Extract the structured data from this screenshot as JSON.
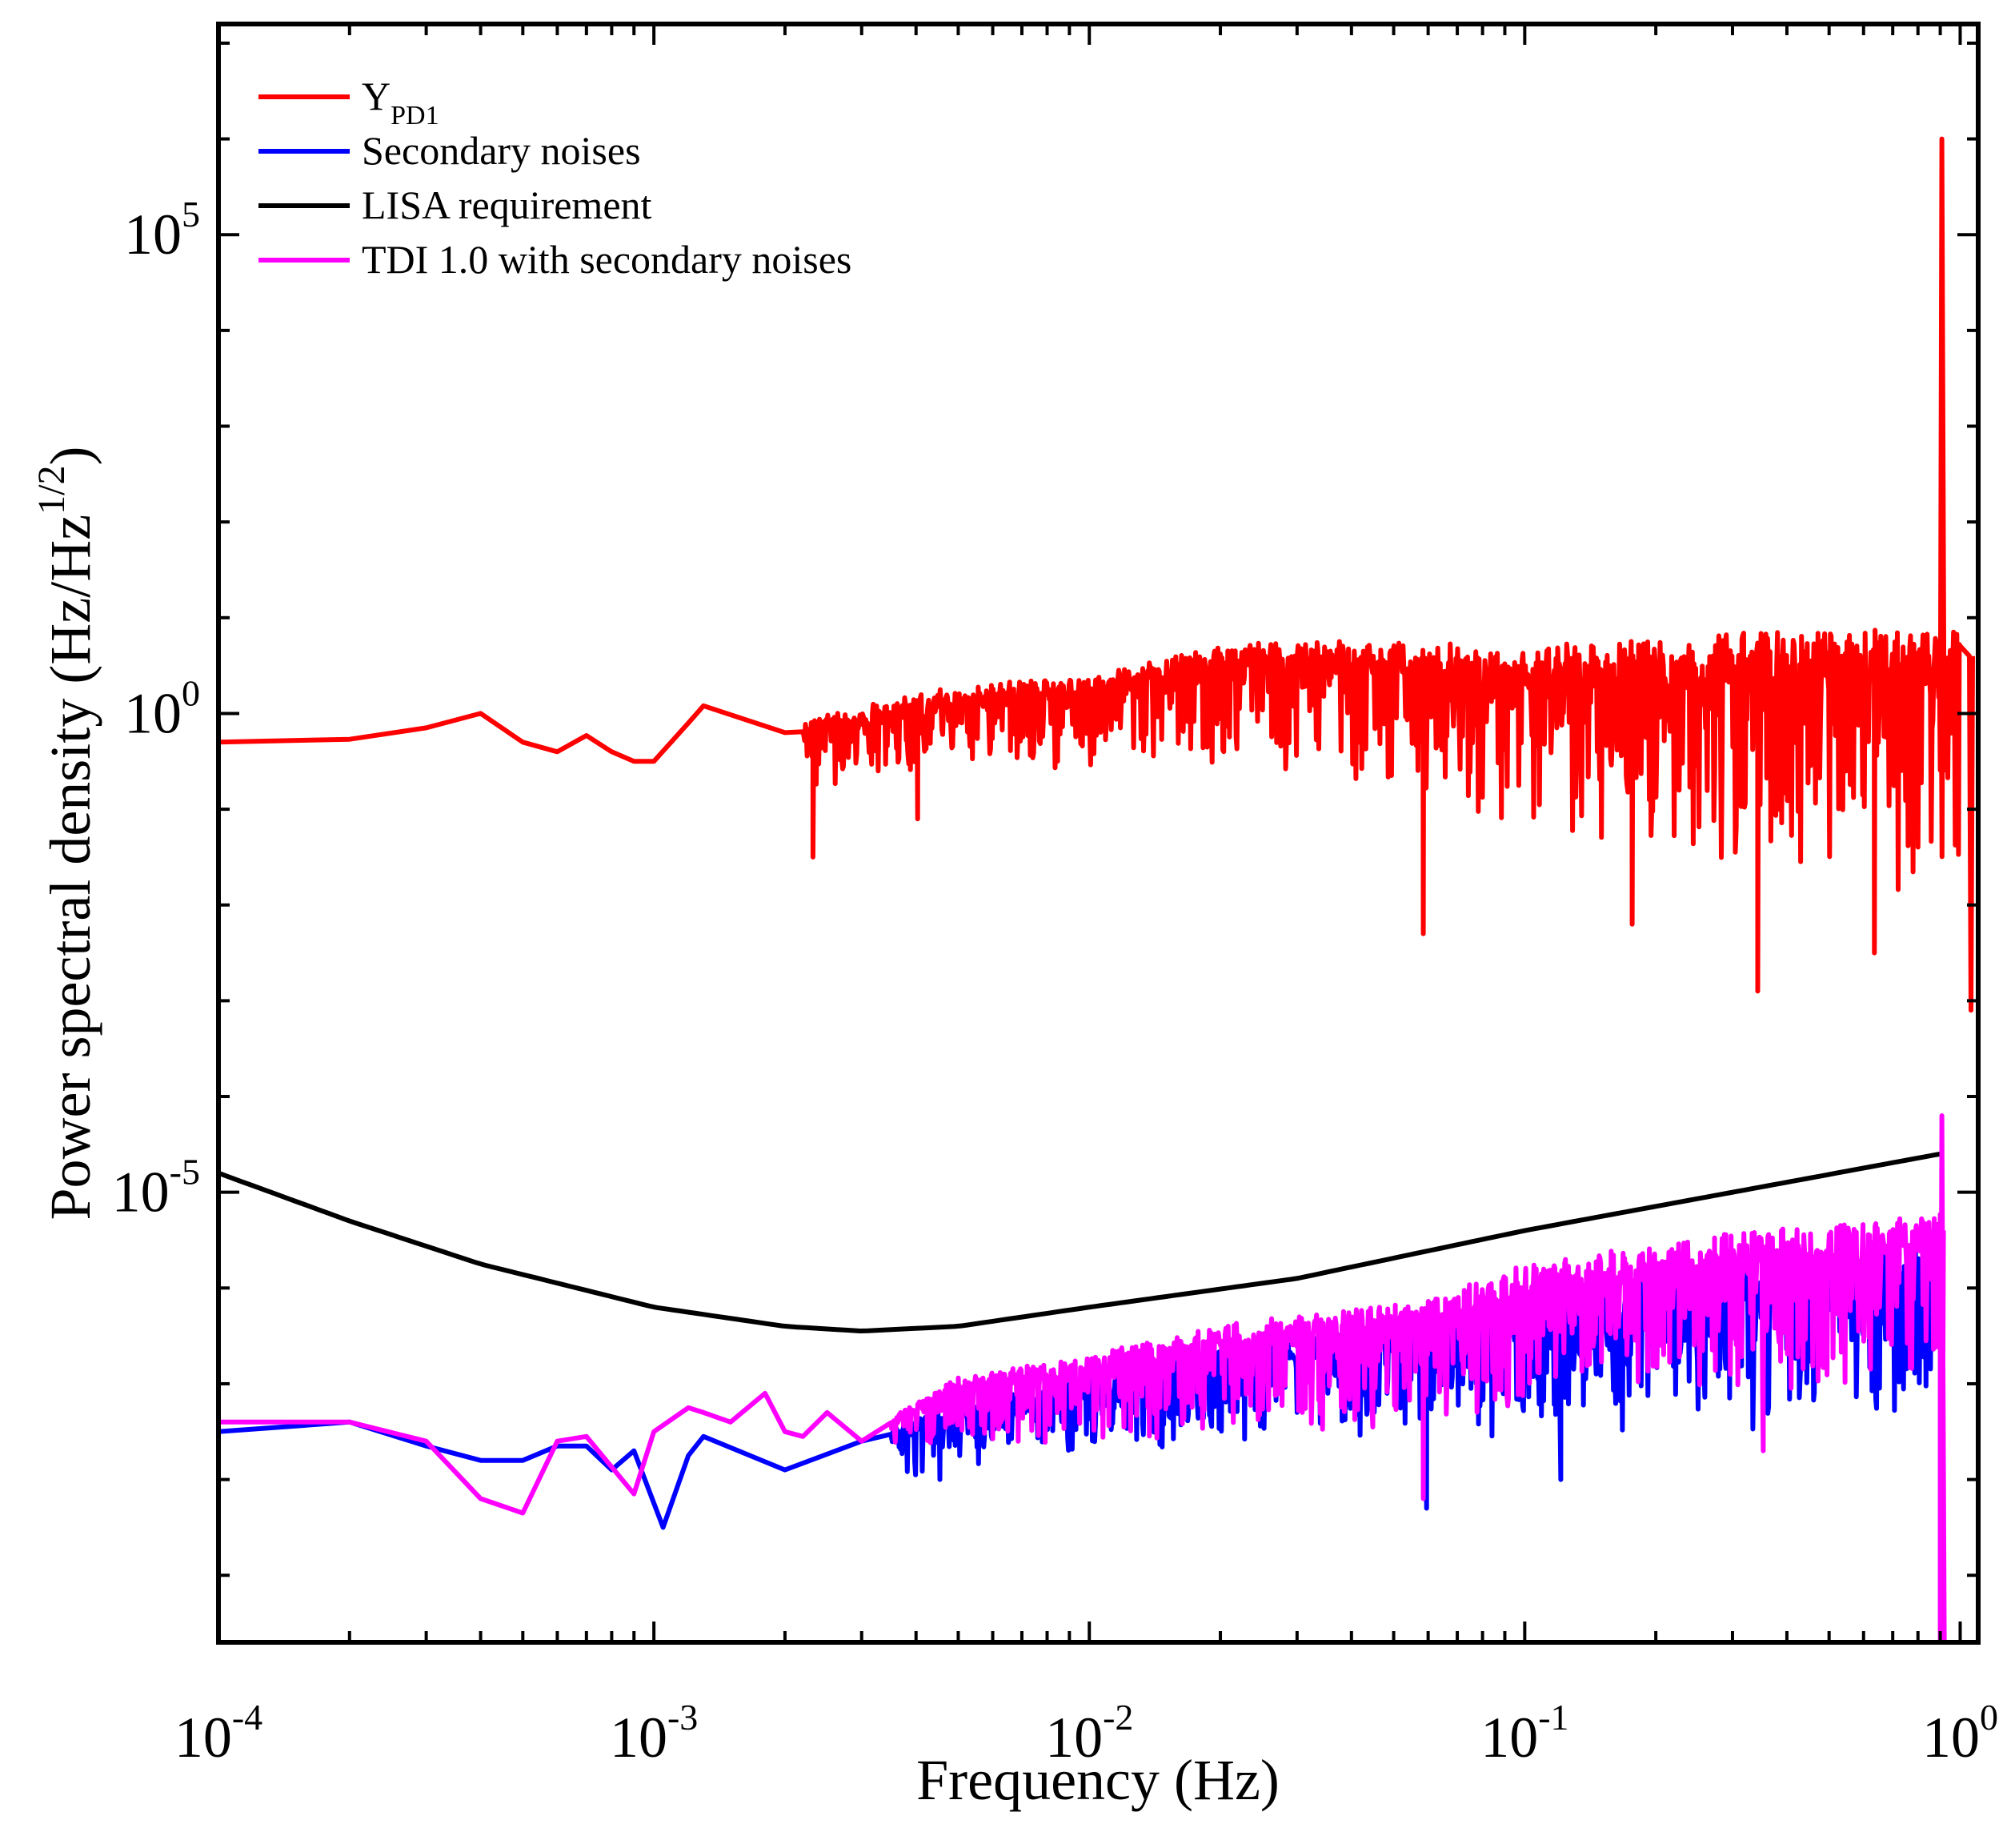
{
  "chart_data": {
    "type": "line",
    "x_scale": "log",
    "y_scale": "log",
    "xlabel": "Frequency (Hz)",
    "ylabel": {
      "main": "Power spectral density (Hz/Hz",
      "sup": "1/2",
      "tail": ")"
    },
    "xlim": [
      0.0001,
      1.1
    ],
    "ylim_log10": [
      -9.7,
      7.2
    ],
    "x_ticks": [
      {
        "value": 0.0001,
        "base": "10",
        "exp": "-4"
      },
      {
        "value": 0.001,
        "base": "10",
        "exp": "-3"
      },
      {
        "value": 0.01,
        "base": "10",
        "exp": "-2"
      },
      {
        "value": 0.1,
        "base": "10",
        "exp": "-1"
      },
      {
        "value": 1,
        "base": "10",
        "exp": "0"
      }
    ],
    "y_ticks": [
      {
        "log10": 5,
        "base": "10",
        "exp": "5"
      },
      {
        "log10": 0,
        "base": "10",
        "exp": "0"
      },
      {
        "log10": -5,
        "base": "10",
        "exp": "-5"
      }
    ],
    "legend": [
      {
        "name": "Y",
        "sub": "PD1",
        "color": "#ff0000"
      },
      {
        "name": "Secondary noises",
        "sub": "",
        "color": "#0000ff"
      },
      {
        "name": "LISA requirement",
        "sub": "",
        "color": "#000000"
      },
      {
        "name": "TDI 1.0 with secondary noises",
        "sub": "",
        "color": "#ff00ff"
      }
    ],
    "series": [
      {
        "name": "Y_PD1",
        "color": "#ff0000",
        "anchors_log10": [
          [
            0.0001,
            -0.3
          ],
          [
            0.0002,
            -0.27
          ],
          [
            0.0003,
            -0.15
          ],
          [
            0.0004,
            0.0
          ],
          [
            0.0005,
            -0.3
          ],
          [
            0.0006,
            -0.4
          ],
          [
            0.0007,
            -0.23
          ],
          [
            0.0008,
            -0.4
          ],
          [
            0.0009,
            -0.5
          ],
          [
            0.001,
            -0.5
          ],
          [
            0.0012,
            -0.1
          ],
          [
            0.0013,
            0.08
          ],
          [
            0.002,
            -0.2
          ],
          [
            0.003,
            0.0
          ],
          [
            0.005,
            0.2
          ],
          [
            0.01,
            0.3
          ],
          [
            0.02,
            0.6
          ],
          [
            0.05,
            0.6
          ],
          [
            0.1,
            0.5
          ],
          [
            0.3,
            0.6
          ],
          [
            1.0,
            0.6
          ]
        ],
        "fine_start": 0.0022,
        "noise_amp": [
          [
            0.002,
            0.6
          ],
          [
            0.005,
            0.7
          ],
          [
            0.01,
            0.8
          ],
          [
            0.05,
            1.3
          ],
          [
            0.1,
            1.6
          ],
          [
            0.3,
            2.0
          ],
          [
            1.0,
            2.4
          ]
        ],
        "spike": {
          "x": 0.9,
          "log10": 6.0
        },
        "dips": [
          [
            0.0023,
            -1.5
          ],
          [
            0.004,
            -1.1
          ],
          [
            0.058,
            -2.3
          ],
          [
            0.175,
            -2.2
          ],
          [
            0.34,
            -2.9
          ],
          [
            0.63,
            -2.5
          ],
          [
            1.05,
            -3.1
          ]
        ],
        "seed": 11
      },
      {
        "name": "Secondary noises",
        "color": "#0000ff",
        "anchors_log10": [
          [
            0.0001,
            -7.5
          ],
          [
            0.0002,
            -7.4
          ],
          [
            0.0003,
            -7.65
          ],
          [
            0.0004,
            -7.8
          ],
          [
            0.0005,
            -7.8
          ],
          [
            0.0006,
            -7.65
          ],
          [
            0.0007,
            -7.65
          ],
          [
            0.0008,
            -7.9
          ],
          [
            0.0009,
            -7.7
          ],
          [
            0.00105,
            -8.5
          ],
          [
            0.0012,
            -7.75
          ],
          [
            0.0013,
            -7.55
          ],
          [
            0.002,
            -7.9
          ],
          [
            0.003,
            -7.6
          ],
          [
            0.005,
            -7.3
          ],
          [
            0.01,
            -7.0
          ],
          [
            0.02,
            -6.7
          ],
          [
            0.05,
            -6.5
          ],
          [
            0.1,
            -6.25
          ],
          [
            0.3,
            -6.0
          ],
          [
            0.9,
            -5.7
          ]
        ],
        "fine_start": 0.0035,
        "noise_amp": [
          [
            0.003,
            0.4
          ],
          [
            0.01,
            0.7
          ],
          [
            0.05,
            1.0
          ],
          [
            0.1,
            1.2
          ],
          [
            0.3,
            1.4
          ],
          [
            0.9,
            1.5
          ]
        ],
        "dips": [
          [
            0.0045,
            -8.0
          ],
          [
            0.059,
            -8.3
          ],
          [
            0.12,
            -8.0
          ]
        ],
        "seed": 23
      },
      {
        "name": "LISA requirement",
        "color": "#000000",
        "anchors_log10": [
          [
            0.0001,
            -4.8
          ],
          [
            0.0002,
            -5.3
          ],
          [
            0.0004,
            -5.75
          ],
          [
            0.001,
            -6.2
          ],
          [
            0.002,
            -6.4
          ],
          [
            0.003,
            -6.45
          ],
          [
            0.005,
            -6.4
          ],
          [
            0.01,
            -6.2
          ],
          [
            0.03,
            -5.9
          ],
          [
            0.1,
            -5.4
          ],
          [
            0.3,
            -5.0
          ],
          [
            0.9,
            -4.6
          ]
        ],
        "smooth": true
      },
      {
        "name": "TDI 1.0 with secondary noises",
        "color": "#ff00ff",
        "anchors_log10": [
          [
            0.0001,
            -7.4
          ],
          [
            0.0002,
            -7.4
          ],
          [
            0.0003,
            -7.6
          ],
          [
            0.0004,
            -8.2
          ],
          [
            0.0005,
            -8.35
          ],
          [
            0.0006,
            -7.6
          ],
          [
            0.0007,
            -7.55
          ],
          [
            0.0009,
            -8.15
          ],
          [
            0.001,
            -7.5
          ],
          [
            0.0012,
            -7.25
          ],
          [
            0.0013,
            -7.3
          ],
          [
            0.0015,
            -7.4
          ],
          [
            0.0018,
            -7.1
          ],
          [
            0.002,
            -7.5
          ],
          [
            0.0022,
            -7.55
          ],
          [
            0.0025,
            -7.3
          ],
          [
            0.003,
            -7.6
          ],
          [
            0.005,
            -7.0
          ],
          [
            0.01,
            -6.8
          ],
          [
            0.02,
            -6.5
          ],
          [
            0.05,
            -6.3
          ],
          [
            0.1,
            -5.9
          ],
          [
            0.3,
            -5.6
          ],
          [
            0.9,
            -5.4
          ]
        ],
        "fine_start": 0.0035,
        "noise_amp": [
          [
            0.003,
            0.4
          ],
          [
            0.01,
            0.8
          ],
          [
            0.05,
            1.1
          ],
          [
            0.1,
            1.3
          ],
          [
            0.3,
            1.4
          ],
          [
            0.9,
            1.5
          ]
        ],
        "dips": [
          [
            0.058,
            -8.2
          ],
          [
            0.35,
            -7.7
          ],
          [
            0.9,
            -9.7
          ]
        ],
        "spike": {
          "x": 0.9,
          "log10": -4.2
        },
        "seed": 37
      }
    ]
  }
}
